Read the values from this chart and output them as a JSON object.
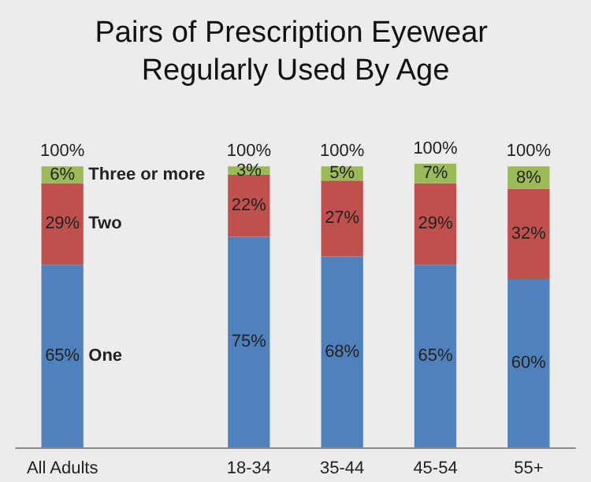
{
  "chart_data": {
    "type": "bar",
    "title": "Pairs of Prescription Eyewear Regularly Used By Age",
    "categories": [
      "All Adults",
      null,
      "18-34",
      "35-44",
      "45-54",
      "55+"
    ],
    "stacked": true,
    "legend": false,
    "tick_labels": "x",
    "series": [
      {
        "name": "One",
        "color": "#4f81bd",
        "values": [
          65,
          null,
          75,
          68,
          65,
          60
        ],
        "value_labels": [
          "65%",
          null,
          "75%",
          "68%",
          "65%",
          "60%"
        ]
      },
      {
        "name": "Two",
        "color": "#c0504d",
        "values": [
          29,
          null,
          22,
          27,
          29,
          32
        ],
        "value_labels": [
          "29%",
          null,
          "22%",
          "27%",
          "29%",
          "32%"
        ]
      },
      {
        "name": "Three or more",
        "color": "#9bbb59",
        "values": [
          6,
          null,
          3,
          5,
          7,
          8
        ],
        "value_labels": [
          "6%",
          null,
          "3%",
          "5%",
          "7%",
          "8%"
        ]
      }
    ],
    "totals": [
      "100%",
      null,
      "100%",
      "100%",
      "100%",
      "100%"
    ]
  }
}
